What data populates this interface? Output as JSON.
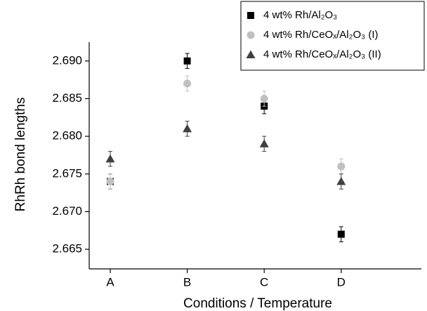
{
  "chart_data": {
    "type": "scatter",
    "x_label": "Conditions / Temperature",
    "y_label": "RhRh bond lengths",
    "categories": [
      "A",
      "B",
      "C",
      "D"
    ],
    "series": [
      {
        "name": "4 wt% Rh/Al₂O₃",
        "color": "#000000",
        "marker": "square",
        "values": [
          2.674,
          2.69,
          2.684,
          2.667
        ],
        "errors": [
          0.001,
          0.001,
          0.001,
          0.001
        ]
      },
      {
        "name": "4 wt% Rh/CeOₓ/Al₂O₃ (I)",
        "color": "#c0c0c0",
        "marker": "circle",
        "values": [
          2.674,
          2.687,
          2.685,
          2.676
        ],
        "errors": [
          0.001,
          0.001,
          0.001,
          0.001
        ]
      },
      {
        "name": "4 wt% Rh/CeOₓ/Al₂O₃ (II)",
        "color": "#404040",
        "marker": "triangle",
        "values": [
          2.677,
          2.681,
          2.679,
          2.674
        ],
        "errors": [
          0.001,
          0.001,
          0.001,
          0.001
        ]
      }
    ],
    "ylim": [
      2.6624,
      2.6925
    ],
    "yticks": [
      2.665,
      {
        "value": 2.67,
        "label": "2.670"
      },
      2.675,
      {
        "value": 2.68,
        "label": "2.680"
      },
      2.685,
      {
        "value": 2.69,
        "label": "2.690"
      }
    ],
    "legend": "top-right"
  }
}
